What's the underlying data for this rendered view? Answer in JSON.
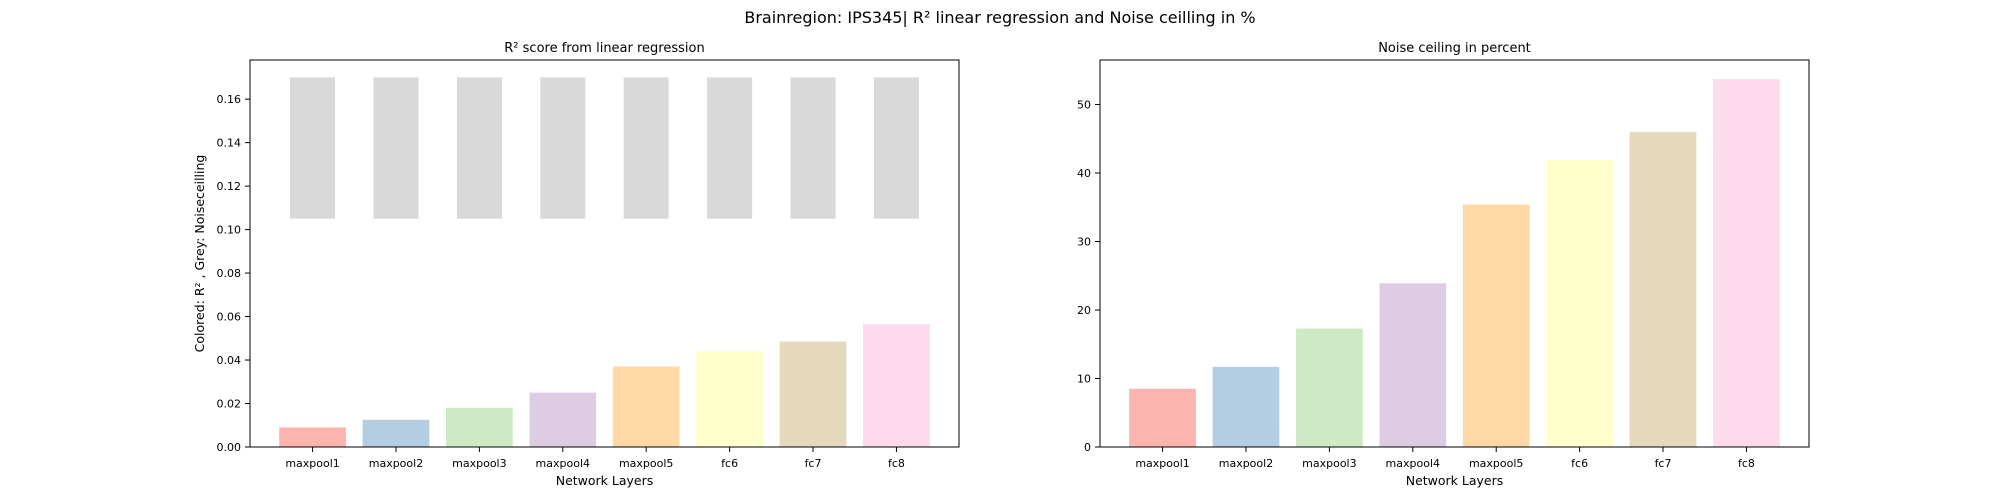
{
  "suptitle": "Brainregion: IPS345| R² linear regression and Noise ceilling in %",
  "chart_data": [
    {
      "type": "bar",
      "title": "R² score from linear regression",
      "xlabel": "Network Layers",
      "ylabel": "Colored: R² , Grey: Noiseceilling",
      "categories": [
        "maxpool1",
        "maxpool2",
        "maxpool3",
        "maxpool4",
        "maxpool5",
        "fc6",
        "fc7",
        "fc8"
      ],
      "ylim": [
        0,
        0.178
      ],
      "yticks": [
        0.0,
        0.02,
        0.04,
        0.06,
        0.08,
        0.1,
        0.12,
        0.14,
        0.16
      ],
      "ytick_labels": [
        "0.00",
        "0.02",
        "0.04",
        "0.06",
        "0.08",
        "0.10",
        "0.12",
        "0.14",
        "0.16"
      ],
      "series": [
        {
          "values": [
            0.009,
            0.0125,
            0.018,
            0.025,
            0.037,
            0.044,
            0.0485,
            0.0565
          ]
        },
        {
          "type": "range",
          "bottoms": [
            0.105,
            0.105,
            0.105,
            0.105,
            0.105,
            0.105,
            0.105,
            0.105
          ],
          "tops": [
            0.17,
            0.17,
            0.17,
            0.17,
            0.17,
            0.17,
            0.17,
            0.17
          ]
        }
      ],
      "colors": [
        "#fbb4ae",
        "#b3cde3",
        "#ccebc5",
        "#decbe4",
        "#fed9a6",
        "#ffffcc",
        "#e5d8bd",
        "#fddaec"
      ],
      "grey_color": "#d9d9d9",
      "grid": false
    },
    {
      "type": "bar",
      "title": "Noise ceiling in percent",
      "xlabel": "Network Layers",
      "ylabel": "",
      "categories": [
        "maxpool1",
        "maxpool2",
        "maxpool3",
        "maxpool4",
        "maxpool5",
        "fc6",
        "fc7",
        "fc8"
      ],
      "ylim": [
        0,
        56.5
      ],
      "yticks": [
        0,
        10,
        20,
        30,
        40,
        50
      ],
      "ytick_labels": [
        "0",
        "10",
        "20",
        "30",
        "40",
        "50"
      ],
      "series": [
        {
          "values": [
            8.5,
            11.7,
            17.3,
            23.9,
            35.4,
            41.9,
            46.0,
            53.7
          ]
        }
      ],
      "colors": [
        "#fbb4ae",
        "#b3cde3",
        "#ccebc5",
        "#decbe4",
        "#fed9a6",
        "#ffffcc",
        "#e5d8bd",
        "#fddaec"
      ],
      "grid": false
    }
  ]
}
